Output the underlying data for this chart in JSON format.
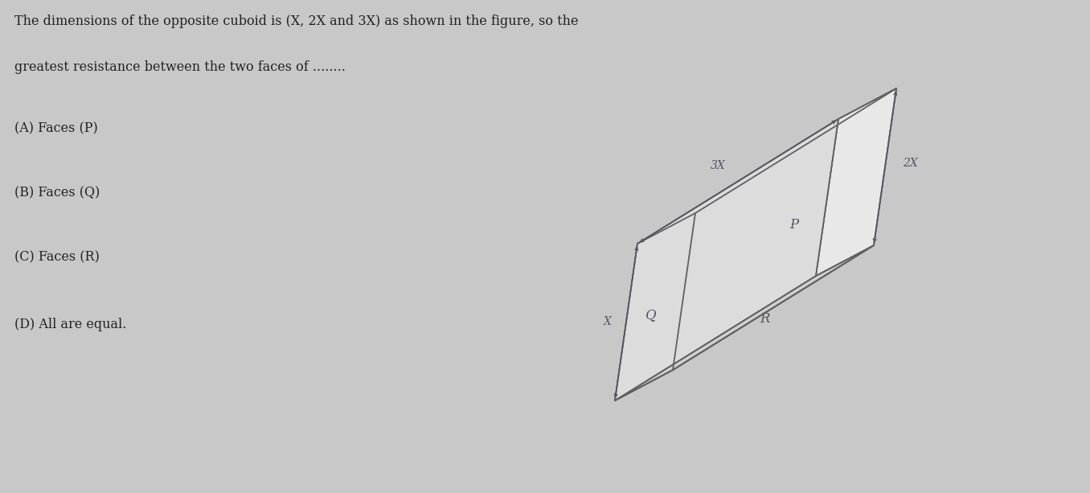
{
  "background_color": "#c8c8c8",
  "title_line1": "The dimensions of the opposite cuboid is (X, 2X and 3X) as shown in the figure, so the",
  "title_line2": "greatest resistance between the two faces of ........",
  "options": [
    "(A) Faces (P)",
    "(B) Faces (Q)",
    "(C) Faces (R)",
    "(D) All are equal."
  ],
  "text_color": "#222222",
  "line_color": "#606060",
  "label_color": "#555566",
  "face_fill_top": "#dcdcdc",
  "face_fill_right": "#e8e8e8",
  "face_fill_front": "#f0f0f0",
  "face_fill_bottom": "#d0d0d0",
  "dim_label_3X": "3X",
  "dim_label_2X": "2X",
  "dim_label_X": "X",
  "face_P": "P",
  "face_Q": "Q",
  "face_R": "R",
  "figwidth": 13.56,
  "figheight": 6.13,
  "dpi": 100
}
